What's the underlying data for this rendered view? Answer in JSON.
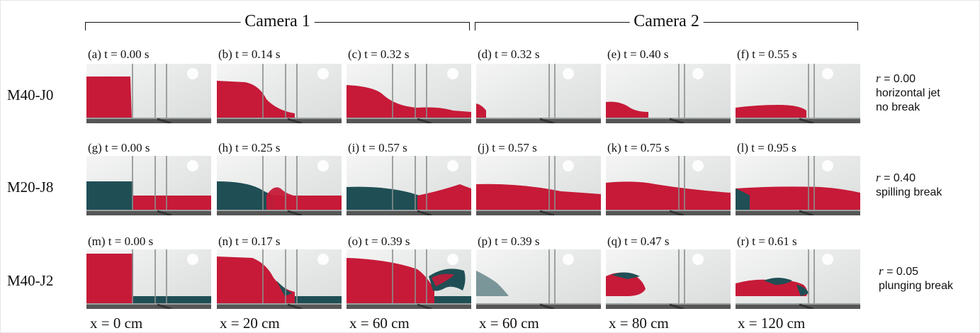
{
  "cameras": [
    {
      "label": "Camera 1"
    },
    {
      "label": "Camera 2"
    }
  ],
  "rows": [
    {
      "case": "M40-J0",
      "r_label": "r",
      "r_value": "= 0.00",
      "regime_lines": [
        "horizontal jet",
        "no break"
      ],
      "panels": [
        {
          "caption": "(a) t = 0.00 s"
        },
        {
          "caption": "(b) t = 0.14 s"
        },
        {
          "caption": "(c) t = 0.32 s"
        },
        {
          "caption": "(d) t = 0.32 s"
        },
        {
          "caption": "(e) t = 0.40 s"
        },
        {
          "caption": "(f) t = 0.55 s"
        }
      ]
    },
    {
      "case": "M20-J8",
      "r_label": "r",
      "r_value": "= 0.40",
      "regime_lines": [
        "spilling break"
      ],
      "panels": [
        {
          "caption": "(g) t = 0.00 s"
        },
        {
          "caption": "(h) t = 0.25 s"
        },
        {
          "caption": "(i) t = 0.57 s"
        },
        {
          "caption": "(j) t = 0.57 s"
        },
        {
          "caption": "(k) t = 0.75 s"
        },
        {
          "caption": "(l) t = 0.95 s"
        }
      ]
    },
    {
      "case": "M40-J2",
      "r_label": "r",
      "r_value": "= 0.05",
      "regime_lines": [
        "plunging break"
      ],
      "panels": [
        {
          "caption": "(m) t = 0.00 s"
        },
        {
          "caption": "(n) t = 0.17 s"
        },
        {
          "caption": "(o) t = 0.39 s"
        },
        {
          "caption": "(p) t = 0.39 s"
        },
        {
          "caption": "(q) t = 0.47 s"
        },
        {
          "caption": "(r) t = 0.61 s"
        }
      ]
    }
  ],
  "positions": [
    "x = 0 cm",
    "x = 20 cm",
    "x = 60 cm",
    "x = 60 cm",
    "x = 80 cm",
    "x = 120 cm"
  ],
  "colors": {
    "red_fluid": "#c61a38",
    "dark_teal_fluid": "#1f4f55",
    "tank_background": "#e9ebea",
    "floor": "#565656"
  }
}
